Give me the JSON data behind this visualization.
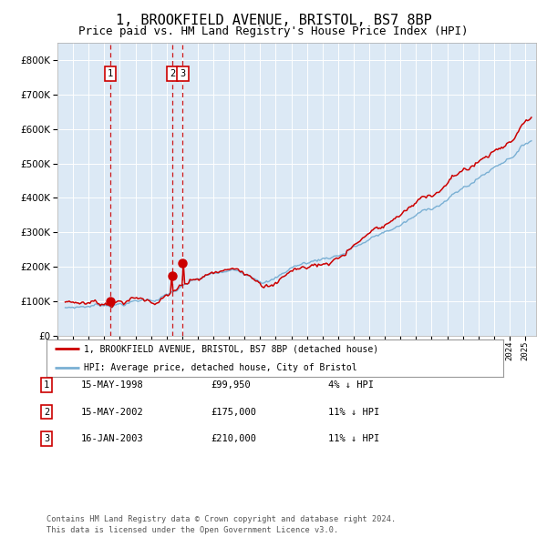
{
  "title": "1, BROOKFIELD AVENUE, BRISTOL, BS7 8BP",
  "subtitle": "Price paid vs. HM Land Registry's House Price Index (HPI)",
  "title_fontsize": 11,
  "subtitle_fontsize": 9,
  "hpi_color": "#7ab0d4",
  "price_color": "#cc0000",
  "plot_bg_color": "#dce9f5",
  "grid_color": "#ffffff",
  "ylim": [
    0,
    850000
  ],
  "xlim_start": 1995.3,
  "xlim_end": 2025.7,
  "sales": [
    {
      "label": "1",
      "date": 1998.37,
      "price": 99950
    },
    {
      "label": "2",
      "date": 2002.37,
      "price": 175000
    },
    {
      "label": "3",
      "date": 2003.04,
      "price": 210000
    }
  ],
  "legend_entries": [
    "1, BROOKFIELD AVENUE, BRISTOL, BS7 8BP (detached house)",
    "HPI: Average price, detached house, City of Bristol"
  ],
  "table_rows": [
    [
      "1",
      "15-MAY-1998",
      "£99,950",
      "4% ↓ HPI"
    ],
    [
      "2",
      "15-MAY-2002",
      "£175,000",
      "11% ↓ HPI"
    ],
    [
      "3",
      "16-JAN-2003",
      "£210,000",
      "11% ↓ HPI"
    ]
  ],
  "footnote": "Contains HM Land Registry data © Crown copyright and database right 2024.\nThis data is licensed under the Open Government Licence v3.0."
}
